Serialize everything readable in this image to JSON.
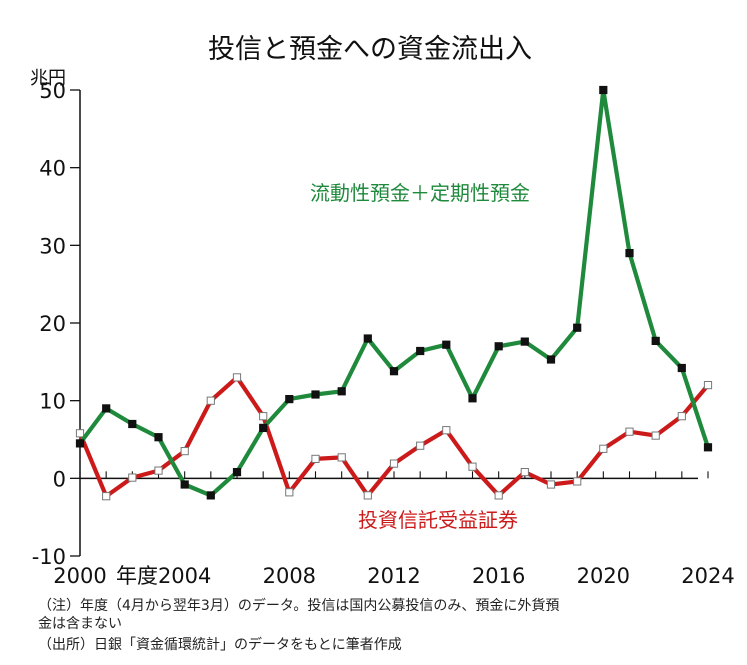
{
  "chart_data": {
    "type": "line",
    "title": "投信と預金への資金流出入",
    "ylabel": "兆円",
    "xlabel": "年度",
    "ylim": [
      -10,
      50
    ],
    "xlim": [
      2000,
      2024
    ],
    "y_ticks": [
      -10,
      0,
      10,
      20,
      30,
      40,
      50
    ],
    "x_ticks": [
      2000,
      2004,
      2008,
      2012,
      2016,
      2020,
      2024
    ],
    "x_tick_labels": [
      "2000",
      "2004",
      "2008",
      "2012",
      "2016",
      "2020",
      "2024"
    ],
    "x_axis_word": "年度",
    "grid": false,
    "series": [
      {
        "name": "流動性預金＋定期性預金",
        "color": "#1f8a3c",
        "marker_fill": "#111111",
        "x": [
          2000,
          2001,
          2002,
          2003,
          2004,
          2005,
          2006,
          2007,
          2008,
          2009,
          2010,
          2011,
          2012,
          2013,
          2014,
          2015,
          2016,
          2017,
          2018,
          2019,
          2020,
          2021,
          2022,
          2023,
          2024
        ],
        "values": [
          4.5,
          9.0,
          7.0,
          5.3,
          -0.8,
          -2.2,
          0.8,
          6.5,
          10.2,
          10.8,
          11.2,
          18.0,
          13.8,
          16.4,
          17.2,
          10.3,
          17.0,
          17.6,
          15.3,
          19.4,
          50.0,
          29.0,
          17.7,
          14.2,
          4.0
        ]
      },
      {
        "name": "投資信託受益証券",
        "color": "#cc1a1a",
        "marker_fill": "#ffffff",
        "x": [
          2000,
          2001,
          2002,
          2003,
          2004,
          2005,
          2006,
          2007,
          2008,
          2009,
          2010,
          2011,
          2012,
          2013,
          2014,
          2015,
          2016,
          2017,
          2018,
          2019,
          2020,
          2021,
          2022,
          2023,
          2024
        ],
        "values": [
          5.8,
          -2.3,
          0.1,
          1.0,
          3.5,
          10.0,
          13.0,
          8.0,
          -1.8,
          2.5,
          2.7,
          -2.2,
          1.9,
          4.2,
          6.2,
          1.5,
          -2.2,
          0.8,
          -0.8,
          -0.4,
          3.8,
          6.0,
          5.5,
          8.0,
          12.0
        ]
      }
    ]
  },
  "notes": [
    "（注）年度（4月から翌年3月）のデータ。投信は国内公募投信のみ、預金に外貨預",
    "金は含まない",
    "（出所）日銀「資金循環統計」のデータをもとに筆者作成"
  ]
}
